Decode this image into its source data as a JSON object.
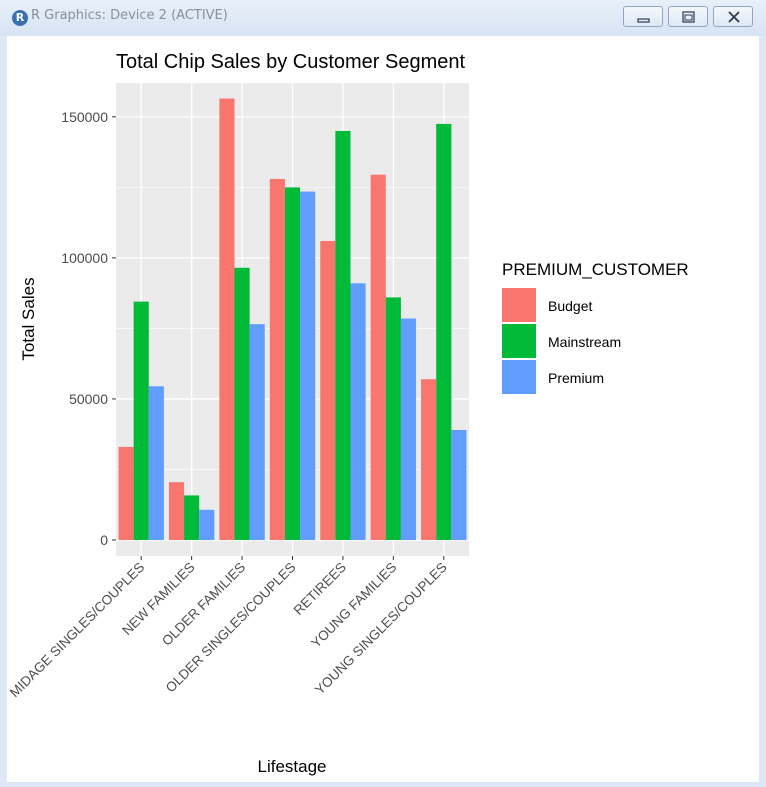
{
  "window": {
    "title": "R Graphics: Device 2 (ACTIVE)",
    "icon": "r-logo-icon",
    "buttons": [
      "minimize-icon",
      "restore-icon",
      "close-icon"
    ]
  },
  "chart_data": {
    "type": "bar",
    "title": "Total Chip Sales by Customer Segment",
    "xlabel": "Lifestage",
    "ylabel": "Total Sales",
    "categories": [
      "MIDAGE SINGLES/COUPLES",
      "NEW FAMILIES",
      "OLDER FAMILIES",
      "OLDER SINGLES/COUPLES",
      "RETIREES",
      "YOUNG FAMILIES",
      "YOUNG SINGLES/COUPLES"
    ],
    "series": [
      {
        "name": "Budget",
        "color": "#F8766D",
        "values": [
          33000,
          20500,
          156500,
          128000,
          106000,
          129500,
          57000
        ]
      },
      {
        "name": "Mainstream",
        "color": "#00BA38",
        "values": [
          84500,
          15800,
          96500,
          125000,
          145000,
          86000,
          147500
        ]
      },
      {
        "name": "Premium",
        "color": "#619CFF",
        "values": [
          54500,
          10700,
          76500,
          123500,
          91000,
          78500,
          39000
        ]
      }
    ],
    "yticks": [
      0,
      50000,
      100000,
      150000
    ],
    "ytick_labels": [
      "0",
      "50000",
      "100000",
      "150000"
    ],
    "ylim": [
      0,
      162000
    ],
    "legend_title": "PREMIUM_CUSTOMER",
    "legend_position": "right",
    "grid": true,
    "panel_background": "#EBEBEB"
  }
}
